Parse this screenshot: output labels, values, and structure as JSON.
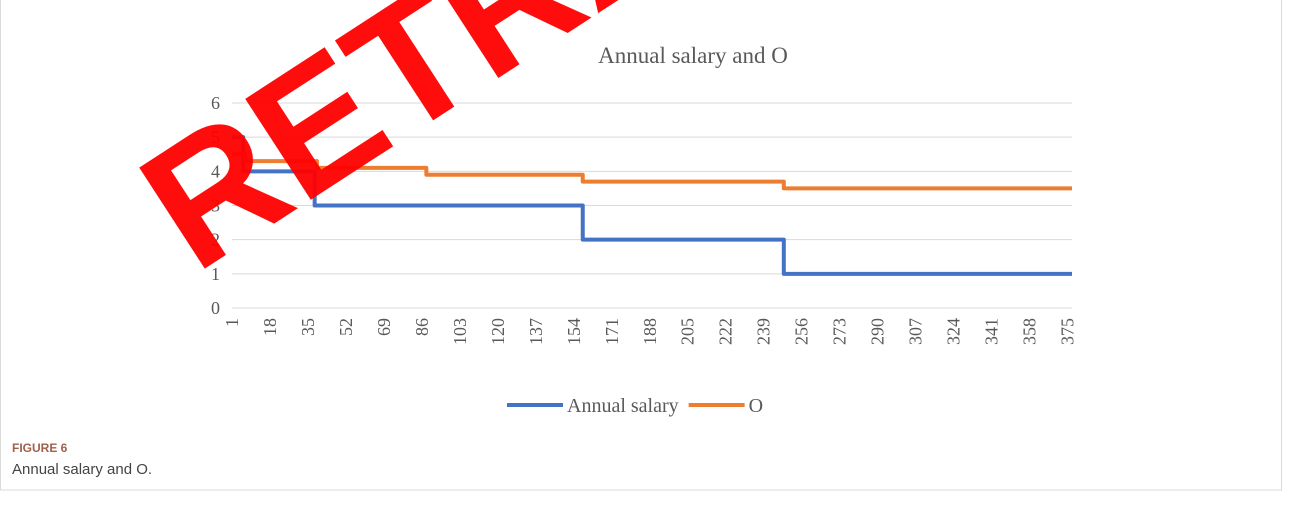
{
  "watermark": "RETRACTED",
  "figure": {
    "label": "FIGURE 6",
    "caption": "Annual salary and O."
  },
  "chart_data": {
    "type": "line",
    "title": "Annual salary and O",
    "series": [
      {
        "name": "Annual salary",
        "color": "#4472c4",
        "x": [
          1,
          6,
          6,
          38,
          38,
          158,
          158,
          248,
          248,
          377
        ],
        "values": [
          5,
          5,
          4,
          4,
          3,
          3,
          2,
          2,
          1,
          1
        ]
      },
      {
        "name": "O",
        "color": "#ed7d31",
        "x": [
          1,
          7,
          7,
          39,
          39,
          88,
          88,
          158,
          158,
          248,
          248,
          377
        ],
        "values": [
          4.5,
          4.5,
          4.3,
          4.3,
          4.1,
          4.1,
          3.9,
          3.9,
          3.7,
          3.7,
          3.5,
          3.5
        ]
      }
    ],
    "xlim": [
      1,
      377
    ],
    "xticks": [
      1,
      18,
      35,
      52,
      69,
      86,
      103,
      120,
      137,
      154,
      171,
      188,
      205,
      222,
      239,
      256,
      273,
      290,
      307,
      324,
      341,
      358,
      375
    ],
    "ylim": [
      0,
      6
    ],
    "yticks": [
      0,
      1,
      2,
      3,
      4,
      5,
      6
    ],
    "grid": true,
    "legend": "bottom"
  }
}
